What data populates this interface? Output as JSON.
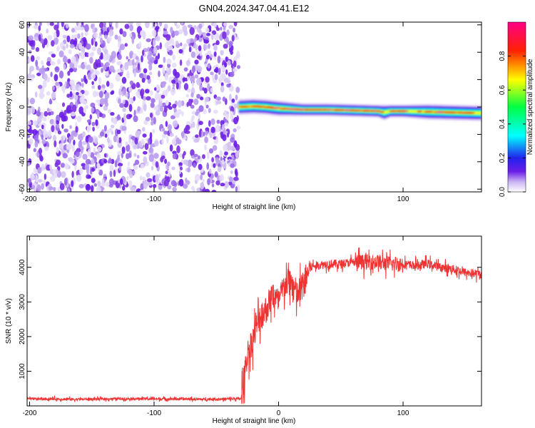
{
  "title": "GN04.2024.347.04.41.E12",
  "colors": {
    "snr_line": "#ee3333",
    "noise_purple": "#7a2ee0",
    "colormap": [
      "#ffffff",
      "#c9b3f2",
      "#6a1ee6",
      "#2222ee",
      "#00ffff",
      "#00ff44",
      "#ffff00",
      "#ff2200",
      "#ff0088"
    ]
  },
  "chart_data": [
    {
      "type": "heatmap",
      "xlabel": "Height of straight line (km)",
      "ylabel": "Frequency (Hz)",
      "xlim": [
        -202,
        163
      ],
      "ylim": [
        -62,
        62
      ],
      "x_ticks": [
        -200,
        -100,
        0,
        100
      ],
      "x_tick_labels": [
        "-200",
        "-100",
        "0",
        "100"
      ],
      "y_ticks": [
        -60,
        -40,
        -20,
        0,
        20,
        40,
        60
      ],
      "y_tick_labels": [
        "-60",
        "-40",
        "-20",
        "0",
        "20",
        "40",
        "60"
      ],
      "colorbar": {
        "label": "Normalized spectral amplitude",
        "range": [
          0,
          1
        ],
        "ticks": [
          0,
          0.2,
          0.4,
          0.6,
          0.8
        ],
        "tick_labels": [
          "0.0",
          "0.2",
          "0.4",
          "0.6",
          "0.8"
        ]
      },
      "noise_region_x": [
        -202,
        -32
      ],
      "signal_band": {
        "x": [
          -32,
          -20,
          -10,
          0,
          20,
          40,
          60,
          80,
          85,
          90,
          100,
          120,
          140,
          163
        ],
        "frequency_center": [
          0,
          0.5,
          0,
          -1,
          -2,
          -2,
          -2.5,
          -3,
          -4,
          -3,
          -3,
          -3.5,
          -4,
          -4.5
        ],
        "half_width": [
          3,
          3,
          3,
          3,
          2.5,
          2.5,
          2.5,
          2.5,
          3,
          2.5,
          2.5,
          3,
          3,
          3
        ]
      },
      "grid": false
    },
    {
      "type": "line",
      "xlabel": "Height of straight line (km)",
      "ylabel": "SNR (10 * v/v)",
      "xlim": [
        -202,
        163
      ],
      "ylim": [
        0,
        4900
      ],
      "x_ticks": [
        -200,
        -100,
        0,
        100
      ],
      "x_tick_labels": [
        "-200",
        "-100",
        "0",
        "100"
      ],
      "y_ticks": [
        1000,
        2000,
        3000,
        4000
      ],
      "y_tick_labels": [
        "1000",
        "2000",
        "3000",
        "4000"
      ],
      "series": [
        {
          "x": [
            -202,
            -180,
            -160,
            -140,
            -120,
            -100,
            -80,
            -60,
            -40,
            -30,
            -28,
            -25,
            -20,
            -15,
            -10,
            -5,
            0,
            5,
            10,
            15,
            20,
            25,
            30,
            40,
            50,
            60,
            70,
            80,
            90,
            100,
            110,
            120,
            130,
            140,
            150,
            163
          ],
          "y": [
            200,
            200,
            190,
            200,
            210,
            200,
            200,
            190,
            200,
            210,
            700,
            1500,
            2000,
            2600,
            2800,
            3200,
            3000,
            3500,
            3600,
            3200,
            3500,
            4000,
            4050,
            4100,
            4100,
            4150,
            4150,
            4150,
            4100,
            4100,
            4050,
            4100,
            4000,
            3950,
            3850,
            3800
          ]
        }
      ],
      "grid": false
    }
  ]
}
